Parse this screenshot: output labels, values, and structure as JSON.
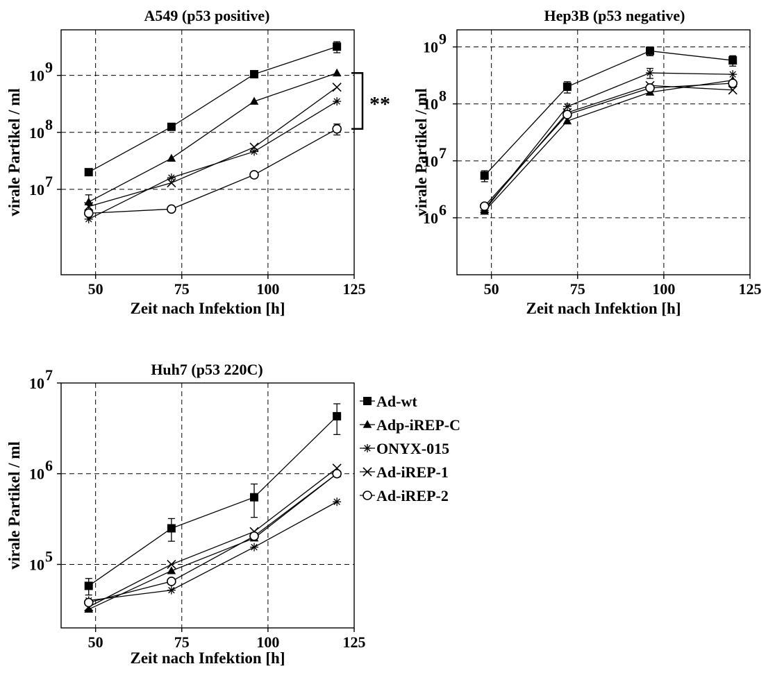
{
  "figure": {
    "legend": [
      {
        "name": "Ad-wt",
        "marker": "square-filled"
      },
      {
        "name": "Adp-iREP-C",
        "marker": "triangle-filled"
      },
      {
        "name": "ONYX-015",
        "marker": "star"
      },
      {
        "name": "Ad-iREP-1",
        "marker": "x"
      },
      {
        "name": "Ad-iREP-2",
        "marker": "circle-open"
      }
    ],
    "legend_placement": "right of bottom panel"
  },
  "chart_data": [
    {
      "type": "line",
      "title": "A549 (p53 positive)",
      "xlabel": "Zeit nach Infektion [h]",
      "ylabel": "virale Partikel / ml",
      "xlim": [
        40,
        125
      ],
      "ylog": true,
      "ylim_log10": [
        5.5,
        9.8
      ],
      "xticks": [
        50,
        75,
        100,
        125
      ],
      "yticks": [
        {
          "base": "10",
          "exp": "7",
          "log": 7
        },
        {
          "base": "10",
          "exp": "8",
          "log": 8
        },
        {
          "base": "10",
          "exp": "9",
          "log": 9
        }
      ],
      "grid": "dashed",
      "x": [
        48,
        72,
        96,
        120
      ],
      "series": [
        {
          "name": "Ad-wt",
          "marker": "square-filled",
          "values": [
            20000000,
            125000000,
            1050000000,
            3200000000
          ],
          "err": [
            0,
            0,
            0,
            700000000
          ]
        },
        {
          "name": "Adp-iREP-C",
          "marker": "triangle-filled",
          "values": [
            6000000,
            35000000,
            350000000,
            1100000000
          ],
          "err": [
            2000000,
            0,
            0,
            0
          ]
        },
        {
          "name": "ONYX-015",
          "marker": "star",
          "values": [
            3000000,
            16000000,
            46000000,
            350000000
          ],
          "err": [
            0,
            0,
            0,
            0
          ]
        },
        {
          "name": "Ad-iREP-1",
          "marker": "x",
          "values": [
            5000000,
            13000000,
            55000000,
            620000000
          ],
          "err": [
            0,
            0,
            0,
            0
          ]
        },
        {
          "name": "Ad-iREP-2",
          "marker": "circle-open",
          "values": [
            3800000,
            4500000,
            18000000,
            115000000
          ],
          "err": [
            0,
            0,
            0,
            25000000
          ]
        }
      ],
      "annotation": {
        "text": "**"
      }
    },
    {
      "type": "line",
      "title": "Hep3B (p53 negative)",
      "xlabel": "Zeit nach Infektion [h]",
      "ylabel": "virale Partikel / ml",
      "xlim": [
        40,
        125
      ],
      "ylog": true,
      "ylim_log10": [
        5,
        9.3
      ],
      "xticks": [
        50,
        75,
        100,
        125
      ],
      "yticks": [
        {
          "base": "10",
          "exp": "6",
          "log": 6
        },
        {
          "base": "10",
          "exp": "7",
          "log": 7
        },
        {
          "base": "10",
          "exp": "8",
          "log": 8
        },
        {
          "base": "10",
          "exp": "9",
          "log": 9
        }
      ],
      "grid": "dashed",
      "x": [
        48,
        72,
        96,
        120
      ],
      "series": [
        {
          "name": "Ad-wt",
          "marker": "square-filled",
          "values": [
            5500000,
            200000000,
            850000000,
            580000000
          ],
          "err": [
            1200000,
            45000000,
            150000000,
            120000000
          ]
        },
        {
          "name": "Adp-iREP-C",
          "marker": "triangle-filled",
          "values": [
            1300000,
            50000000,
            160000000,
            260000000
          ],
          "err": [
            0,
            0,
            0,
            0
          ]
        },
        {
          "name": "ONYX-015",
          "marker": "star",
          "values": [
            1350000,
            90000000,
            350000000,
            330000000
          ],
          "err": [
            0,
            0,
            70000000,
            0
          ]
        },
        {
          "name": "Ad-iREP-1",
          "marker": "x",
          "values": [
            1450000,
            70000000,
            210000000,
            175000000
          ],
          "err": [
            0,
            0,
            0,
            0
          ]
        },
        {
          "name": "Ad-iREP-2",
          "marker": "circle-open",
          "values": [
            1600000,
            65000000,
            190000000,
            230000000
          ],
          "err": [
            0,
            0,
            0,
            0
          ]
        }
      ]
    },
    {
      "type": "line",
      "title": "Huh7 (p53 220C)",
      "xlabel": "Zeit nach Infektion [h]",
      "ylabel": "virale Partikel / ml",
      "xlim": [
        40,
        125
      ],
      "ylog": true,
      "ylim_log10": [
        4.3,
        7
      ],
      "xticks": [
        50,
        75,
        100,
        125
      ],
      "yticks": [
        {
          "base": "10",
          "exp": "5",
          "log": 5
        },
        {
          "base": "10",
          "exp": "6",
          "log": 6
        },
        {
          "base": "10",
          "exp": "7",
          "log": 7
        }
      ],
      "grid": "dashed",
      "x": [
        48,
        72,
        96,
        120
      ],
      "series": [
        {
          "name": "Ad-wt",
          "marker": "square-filled",
          "values": [
            58000,
            250000,
            550000,
            4300000
          ],
          "err": [
            12000,
            70000,
            220000,
            1600000
          ]
        },
        {
          "name": "Adp-iREP-C",
          "marker": "triangle-filled",
          "values": [
            32000,
            85000,
            195000,
            1000000
          ],
          "err": [
            0,
            0,
            0,
            0
          ]
        },
        {
          "name": "ONYX-015",
          "marker": "star",
          "values": [
            40000,
            52000,
            155000,
            490000
          ],
          "err": [
            0,
            0,
            0,
            0
          ]
        },
        {
          "name": "Ad-iREP-1",
          "marker": "x",
          "values": [
            34000,
            100000,
            230000,
            1150000
          ],
          "err": [
            0,
            0,
            0,
            0
          ]
        },
        {
          "name": "Ad-iREP-2",
          "marker": "circle-open",
          "values": [
            38000,
            65000,
            205000,
            1000000
          ],
          "err": [
            0,
            0,
            0,
            0
          ]
        }
      ]
    }
  ]
}
